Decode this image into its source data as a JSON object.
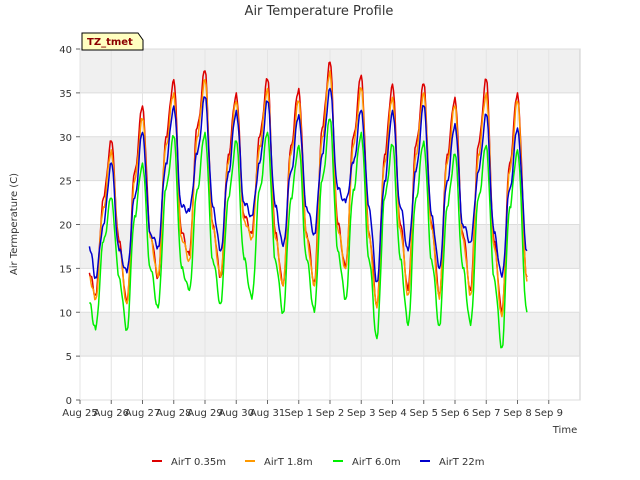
{
  "chart_data": {
    "type": "line",
    "title": "Air Temperature Profile",
    "xlabel": "Time",
    "ylabel": "Air Termperature (C)",
    "tag_label": "TZ_tmet",
    "ylim": [
      0,
      40
    ],
    "yticks": [
      0,
      5,
      10,
      15,
      20,
      25,
      30,
      35,
      40
    ],
    "xlim": [
      0,
      16
    ],
    "xticks": [
      {
        "pos": 0,
        "label": "Aug 25"
      },
      {
        "pos": 1,
        "label": "Aug 26"
      },
      {
        "pos": 2,
        "label": "Aug 27"
      },
      {
        "pos": 3,
        "label": "Aug 28"
      },
      {
        "pos": 4,
        "label": "Aug 29"
      },
      {
        "pos": 5,
        "label": "Aug 30"
      },
      {
        "pos": 6,
        "label": "Aug 31"
      },
      {
        "pos": 7,
        "label": "Sep 1"
      },
      {
        "pos": 8,
        "label": "Sep 2"
      },
      {
        "pos": 9,
        "label": "Sep 3"
      },
      {
        "pos": 10,
        "label": "Sep 4"
      },
      {
        "pos": 11,
        "label": "Sep 5"
      },
      {
        "pos": 12,
        "label": "Sep 6"
      },
      {
        "pos": 13,
        "label": "Sep 7"
      },
      {
        "pos": 14,
        "label": "Sep 8"
      },
      {
        "pos": 15,
        "label": "Sep 9"
      }
    ],
    "grid": true,
    "legend_position": "bottom",
    "series": [
      {
        "name": "AirT 0.35m",
        "color": "#dd0000",
        "points": [
          [
            0.3,
            14.5
          ],
          [
            0.5,
            12.0
          ],
          [
            0.75,
            23.0
          ],
          [
            1.0,
            29.5
          ],
          [
            1.25,
            18.0
          ],
          [
            1.5,
            11.0
          ],
          [
            1.75,
            26.0
          ],
          [
            2.0,
            33.5
          ],
          [
            2.25,
            19.0
          ],
          [
            2.5,
            14.0
          ],
          [
            2.75,
            30.0
          ],
          [
            3.0,
            36.5
          ],
          [
            3.25,
            19.0
          ],
          [
            3.5,
            16.5
          ],
          [
            3.75,
            31.0
          ],
          [
            4.0,
            37.5
          ],
          [
            4.25,
            20.0
          ],
          [
            4.5,
            14.0
          ],
          [
            4.75,
            28.0
          ],
          [
            5.0,
            35.0
          ],
          [
            5.25,
            21.0
          ],
          [
            5.5,
            19.0
          ],
          [
            5.75,
            30.0
          ],
          [
            6.0,
            36.5
          ],
          [
            6.25,
            19.0
          ],
          [
            6.5,
            13.0
          ],
          [
            6.75,
            29.0
          ],
          [
            7.0,
            35.5
          ],
          [
            7.25,
            19.0
          ],
          [
            7.5,
            13.5
          ],
          [
            7.75,
            31.0
          ],
          [
            8.0,
            38.5
          ],
          [
            8.25,
            20.0
          ],
          [
            8.5,
            15.0
          ],
          [
            8.75,
            30.0
          ],
          [
            9.0,
            37.0
          ],
          [
            9.25,
            19.0
          ],
          [
            9.5,
            11.0
          ],
          [
            9.75,
            28.0
          ],
          [
            10.0,
            36.0
          ],
          [
            10.25,
            20.0
          ],
          [
            10.5,
            12.5
          ],
          [
            10.75,
            29.0
          ],
          [
            11.0,
            36.0
          ],
          [
            11.25,
            20.0
          ],
          [
            11.5,
            12.0
          ],
          [
            11.75,
            28.0
          ],
          [
            12.0,
            34.5
          ],
          [
            12.25,
            19.0
          ],
          [
            12.5,
            12.5
          ],
          [
            12.75,
            29.0
          ],
          [
            13.0,
            36.5
          ],
          [
            13.25,
            18.0
          ],
          [
            13.5,
            10.0
          ],
          [
            13.75,
            27.0
          ],
          [
            14.0,
            35.0
          ],
          [
            14.3,
            14.0
          ]
        ]
      },
      {
        "name": "AirT 1.8m",
        "color": "#ff9900",
        "points": [
          [
            0.3,
            14.0
          ],
          [
            0.5,
            11.5
          ],
          [
            0.75,
            22.0
          ],
          [
            1.0,
            28.5
          ],
          [
            1.25,
            17.5
          ],
          [
            1.5,
            11.0
          ],
          [
            1.75,
            25.0
          ],
          [
            2.0,
            32.0
          ],
          [
            2.25,
            18.5
          ],
          [
            2.5,
            14.0
          ],
          [
            2.75,
            29.0
          ],
          [
            3.0,
            35.0
          ],
          [
            3.25,
            18.5
          ],
          [
            3.5,
            16.0
          ],
          [
            3.75,
            30.0
          ],
          [
            4.0,
            36.5
          ],
          [
            4.25,
            19.5
          ],
          [
            4.5,
            14.0
          ],
          [
            4.75,
            27.0
          ],
          [
            5.0,
            34.0
          ],
          [
            5.25,
            20.5
          ],
          [
            5.5,
            18.5
          ],
          [
            5.75,
            29.0
          ],
          [
            6.0,
            35.5
          ],
          [
            6.25,
            18.5
          ],
          [
            6.5,
            13.0
          ],
          [
            6.75,
            28.0
          ],
          [
            7.0,
            34.0
          ],
          [
            7.25,
            18.5
          ],
          [
            7.5,
            13.0
          ],
          [
            7.75,
            30.0
          ],
          [
            8.0,
            37.5
          ],
          [
            8.25,
            19.5
          ],
          [
            8.5,
            15.0
          ],
          [
            8.75,
            29.0
          ],
          [
            9.0,
            35.5
          ],
          [
            9.25,
            18.5
          ],
          [
            9.5,
            10.5
          ],
          [
            9.75,
            27.0
          ],
          [
            10.0,
            34.5
          ],
          [
            10.25,
            19.5
          ],
          [
            10.5,
            12.0
          ],
          [
            10.75,
            28.0
          ],
          [
            11.0,
            35.0
          ],
          [
            11.25,
            19.5
          ],
          [
            11.5,
            11.5
          ],
          [
            11.75,
            27.0
          ],
          [
            12.0,
            33.5
          ],
          [
            12.25,
            18.5
          ],
          [
            12.5,
            12.0
          ],
          [
            12.75,
            28.0
          ],
          [
            13.0,
            35.0
          ],
          [
            13.25,
            17.5
          ],
          [
            13.5,
            9.5
          ],
          [
            13.75,
            26.0
          ],
          [
            14.0,
            34.0
          ],
          [
            14.3,
            13.5
          ]
        ]
      },
      {
        "name": "AirT 6.0m",
        "color": "#00ee00",
        "points": [
          [
            0.3,
            11.0
          ],
          [
            0.5,
            8.0
          ],
          [
            0.75,
            18.0
          ],
          [
            1.0,
            23.0
          ],
          [
            1.25,
            14.0
          ],
          [
            1.5,
            8.0
          ],
          [
            1.75,
            21.0
          ],
          [
            2.0,
            27.0
          ],
          [
            2.25,
            15.0
          ],
          [
            2.5,
            10.5
          ],
          [
            2.75,
            24.0
          ],
          [
            3.0,
            30.0
          ],
          [
            3.25,
            15.0
          ],
          [
            3.5,
            12.5
          ],
          [
            3.75,
            24.0
          ],
          [
            4.0,
            30.5
          ],
          [
            4.25,
            16.0
          ],
          [
            4.5,
            11.0
          ],
          [
            4.75,
            23.0
          ],
          [
            5.0,
            29.5
          ],
          [
            5.25,
            16.0
          ],
          [
            5.5,
            11.5
          ],
          [
            5.75,
            24.0
          ],
          [
            6.0,
            30.5
          ],
          [
            6.25,
            16.0
          ],
          [
            6.5,
            10.0
          ],
          [
            6.75,
            23.0
          ],
          [
            7.0,
            29.0
          ],
          [
            7.25,
            16.0
          ],
          [
            7.5,
            10.0
          ],
          [
            7.75,
            25.0
          ],
          [
            8.0,
            32.0
          ],
          [
            8.25,
            17.0
          ],
          [
            8.5,
            11.5
          ],
          [
            8.75,
            24.0
          ],
          [
            9.0,
            30.5
          ],
          [
            9.25,
            16.0
          ],
          [
            9.5,
            7.0
          ],
          [
            9.75,
            23.0
          ],
          [
            10.0,
            29.0
          ],
          [
            10.25,
            16.0
          ],
          [
            10.5,
            8.5
          ],
          [
            10.75,
            23.0
          ],
          [
            11.0,
            29.5
          ],
          [
            11.25,
            16.0
          ],
          [
            11.5,
            8.5
          ],
          [
            11.75,
            22.0
          ],
          [
            12.0,
            28.0
          ],
          [
            12.25,
            15.0
          ],
          [
            12.5,
            8.5
          ],
          [
            12.75,
            23.0
          ],
          [
            13.0,
            29.0
          ],
          [
            13.25,
            14.0
          ],
          [
            13.5,
            6.0
          ],
          [
            13.75,
            22.0
          ],
          [
            14.0,
            28.5
          ],
          [
            14.3,
            10.0
          ]
        ]
      },
      {
        "name": "AirT 22m",
        "color": "#0000cc",
        "points": [
          [
            0.3,
            17.5
          ],
          [
            0.5,
            14.0
          ],
          [
            0.75,
            20.0
          ],
          [
            1.0,
            27.0
          ],
          [
            1.25,
            17.0
          ],
          [
            1.5,
            14.5
          ],
          [
            1.75,
            23.0
          ],
          [
            2.0,
            30.5
          ],
          [
            2.25,
            19.0
          ],
          [
            2.5,
            17.5
          ],
          [
            2.75,
            27.0
          ],
          [
            3.0,
            33.5
          ],
          [
            3.25,
            22.0
          ],
          [
            3.5,
            21.5
          ],
          [
            3.75,
            28.0
          ],
          [
            4.0,
            34.5
          ],
          [
            4.25,
            22.0
          ],
          [
            4.5,
            17.0
          ],
          [
            4.75,
            26.0
          ],
          [
            5.0,
            33.0
          ],
          [
            5.25,
            22.5
          ],
          [
            5.5,
            21.0
          ],
          [
            5.75,
            27.0
          ],
          [
            6.0,
            34.0
          ],
          [
            6.25,
            22.0
          ],
          [
            6.5,
            17.5
          ],
          [
            6.75,
            26.0
          ],
          [
            7.0,
            32.5
          ],
          [
            7.25,
            22.0
          ],
          [
            7.5,
            19.0
          ],
          [
            7.75,
            28.0
          ],
          [
            8.0,
            35.5
          ],
          [
            8.25,
            24.0
          ],
          [
            8.5,
            22.5
          ],
          [
            8.75,
            27.0
          ],
          [
            9.0,
            33.0
          ],
          [
            9.25,
            22.0
          ],
          [
            9.5,
            13.5
          ],
          [
            9.75,
            25.0
          ],
          [
            10.0,
            33.0
          ],
          [
            10.25,
            22.0
          ],
          [
            10.5,
            17.0
          ],
          [
            10.75,
            26.0
          ],
          [
            11.0,
            33.5
          ],
          [
            11.25,
            21.0
          ],
          [
            11.5,
            15.0
          ],
          [
            11.75,
            25.0
          ],
          [
            12.0,
            31.5
          ],
          [
            12.25,
            20.0
          ],
          [
            12.5,
            18.0
          ],
          [
            12.75,
            26.0
          ],
          [
            13.0,
            32.5
          ],
          [
            13.25,
            19.0
          ],
          [
            13.5,
            14.0
          ],
          [
            13.75,
            24.0
          ],
          [
            14.0,
            31.0
          ],
          [
            14.3,
            17.0
          ]
        ]
      }
    ]
  }
}
